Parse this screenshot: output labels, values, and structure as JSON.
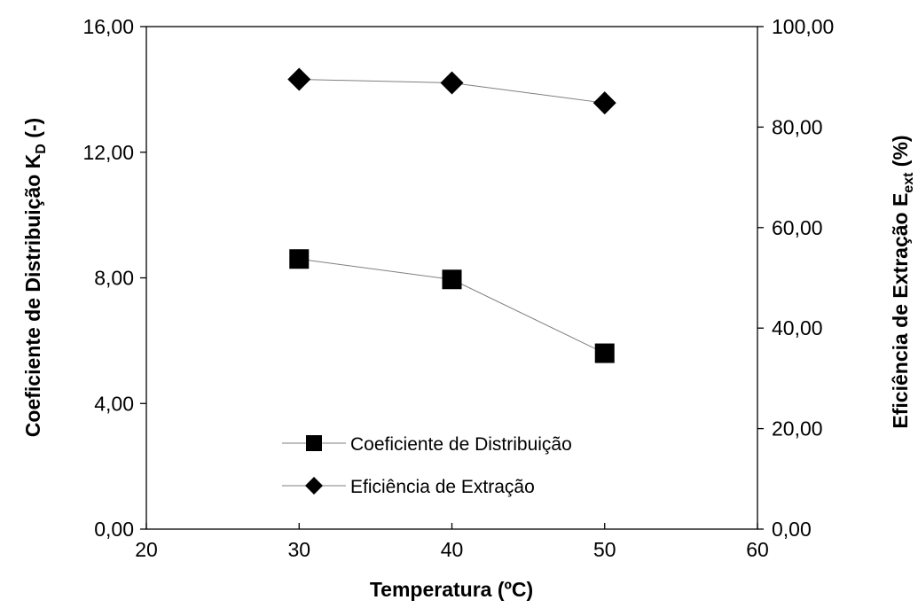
{
  "chart_data": {
    "type": "line",
    "title": "",
    "xlabel": "Temperatura (ºC)",
    "ylabel_left": {
      "main": "Coeficiente de Distribuição K",
      "sub": "D",
      "suffix": " (-)"
    },
    "ylabel_right": {
      "main": "Eficiência de  Extração E",
      "sub": "ext",
      "suffix": " (%)"
    },
    "xlim": [
      20,
      60
    ],
    "ylim_left": [
      0,
      16
    ],
    "ylim_right": [
      0,
      100
    ],
    "x_ticks": [
      "20",
      "30",
      "40",
      "50",
      "60"
    ],
    "y_left_ticks": [
      "0,00",
      "4,00",
      "8,00",
      "12,00",
      "16,00"
    ],
    "y_right_ticks": [
      "0,00",
      "20,00",
      "40,00",
      "60,00",
      "80,00",
      "100,00"
    ],
    "grid": false,
    "legend_position": "bottom-center",
    "series": [
      {
        "name": "Coeficiente de Distribuição",
        "axis": "left",
        "marker": "square",
        "x": [
          30,
          40,
          50
        ],
        "y": [
          8.6,
          7.95,
          5.6
        ]
      },
      {
        "name": "Eficiência de Extração",
        "axis": "right",
        "marker": "diamond",
        "x": [
          30,
          40,
          50
        ],
        "y": [
          89.5,
          88.8,
          84.8
        ]
      }
    ],
    "colors": {
      "marker": "#000000",
      "line": "#7f7f7f",
      "axis": "#000000"
    }
  }
}
